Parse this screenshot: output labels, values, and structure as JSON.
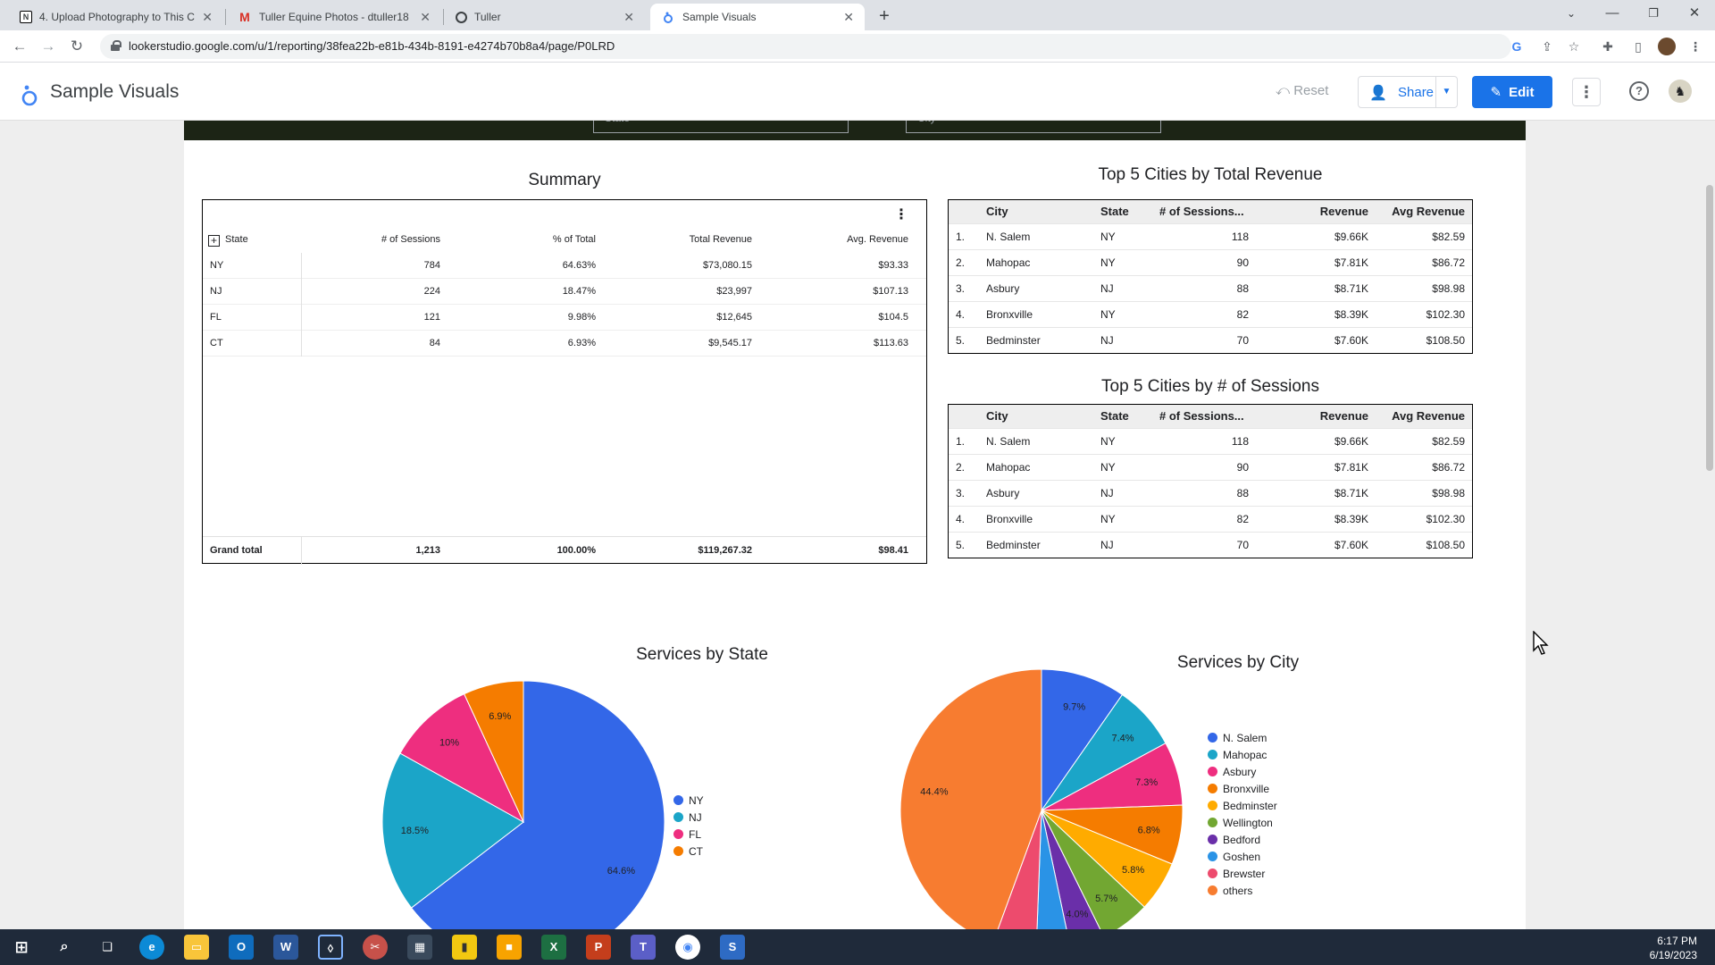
{
  "browser": {
    "tabs": [
      {
        "title": "4. Upload Photography to This C",
        "favicon": "notion-icon"
      },
      {
        "title": "Tuller Equine Photos - dtuller18",
        "favicon": "gmail-icon"
      },
      {
        "title": "Tuller",
        "favicon": "github-icon"
      },
      {
        "title": "Sample Visuals",
        "favicon": "looker-icon",
        "active": true
      }
    ],
    "new_tab": "+",
    "url": "lookerstudio.google.com/u/1/reporting/38fea22b-e81b-434b-8191-e4274b70b8a4/page/P0LRD"
  },
  "header": {
    "title": "Sample Visuals",
    "reset_label": "Reset",
    "share_label": "Share",
    "edit_label": "Edit"
  },
  "filters": {
    "state": "State",
    "city": "City"
  },
  "summary": {
    "title": "Summary",
    "columns": [
      "State",
      "# of Sessions",
      "% of Total",
      "Total Revenue",
      "Avg. Revenue"
    ],
    "rows": [
      [
        "NY",
        "784",
        "64.63%",
        "$73,080.15",
        "$93.33"
      ],
      [
        "NJ",
        "224",
        "18.47%",
        "$23,997",
        "$107.13"
      ],
      [
        "FL",
        "121",
        "9.98%",
        "$12,645",
        "$104.5"
      ],
      [
        "CT",
        "84",
        "6.93%",
        "$9,545.17",
        "$113.63"
      ]
    ],
    "grand_total": [
      "Grand total",
      "1,213",
      "100.00%",
      "$119,267.32",
      "$98.41"
    ]
  },
  "top_revenue": {
    "title": "Top 5 Cities by Total Revenue",
    "columns": [
      "City",
      "State",
      "# of Sessions...",
      "Revenue",
      "Avg Revenue"
    ],
    "rows": [
      [
        "1.",
        "N. Salem",
        "NY",
        "118",
        "$9.66K",
        "$82.59"
      ],
      [
        "2.",
        "Mahopac",
        "NY",
        "90",
        "$7.81K",
        "$86.72"
      ],
      [
        "3.",
        "Asbury",
        "NJ",
        "88",
        "$8.71K",
        "$98.98"
      ],
      [
        "4.",
        "Bronxville",
        "NY",
        "82",
        "$8.39K",
        "$102.30"
      ],
      [
        "5.",
        "Bedminster",
        "NJ",
        "70",
        "$7.60K",
        "$108.50"
      ]
    ]
  },
  "top_sessions": {
    "title": "Top 5 Cities by # of Sessions",
    "columns": [
      "City",
      "State",
      "# of Sessions...",
      "Revenue",
      "Avg Revenue"
    ],
    "rows": [
      [
        "1.",
        "N. Salem",
        "NY",
        "118",
        "$9.66K",
        "$82.59"
      ],
      [
        "2.",
        "Mahopac",
        "NY",
        "90",
        "$7.81K",
        "$86.72"
      ],
      [
        "3.",
        "Asbury",
        "NJ",
        "88",
        "$8.71K",
        "$98.98"
      ],
      [
        "4.",
        "Bronxville",
        "NY",
        "82",
        "$8.39K",
        "$102.30"
      ],
      [
        "5.",
        "Bedminster",
        "NJ",
        "70",
        "$7.60K",
        "$108.50"
      ]
    ]
  },
  "chart_data": [
    {
      "type": "pie",
      "title": "Services by State",
      "categories": [
        "NY",
        "NJ",
        "FL",
        "CT"
      ],
      "values": [
        64.6,
        18.5,
        10,
        6.9
      ],
      "labels": [
        "64.6%",
        "18.5%",
        "10%",
        "6.9%"
      ],
      "colors": [
        "#3367e8",
        "#1ba5c8",
        "#ee2e7f",
        "#f57c00"
      ],
      "legend": "right"
    },
    {
      "type": "pie",
      "title": "Services by City",
      "categories": [
        "N. Salem",
        "Mahopac",
        "Asbury",
        "Bronxville",
        "Bedminster",
        "Wellington",
        "Bedford",
        "Goshen",
        "Brewster",
        "others"
      ],
      "values": [
        9.7,
        7.4,
        7.3,
        6.8,
        5.8,
        5.7,
        4.0,
        3.9,
        5.0,
        44.4
      ],
      "labels": [
        "9.7%",
        "7.4%",
        "7.3%",
        "6.8%",
        "5.8%",
        "5.7%",
        "4.0%",
        "",
        "",
        "44.4%"
      ],
      "colors": [
        "#3367e8",
        "#1ba5c8",
        "#ee2e7f",
        "#f57c00",
        "#ffab00",
        "#72a732",
        "#6a2fa9",
        "#2a93e6",
        "#ed4b6d",
        "#f77c30"
      ],
      "legend": "right"
    }
  ],
  "taskbar": {
    "time": "6:17 PM",
    "date": "6/19/2023"
  }
}
